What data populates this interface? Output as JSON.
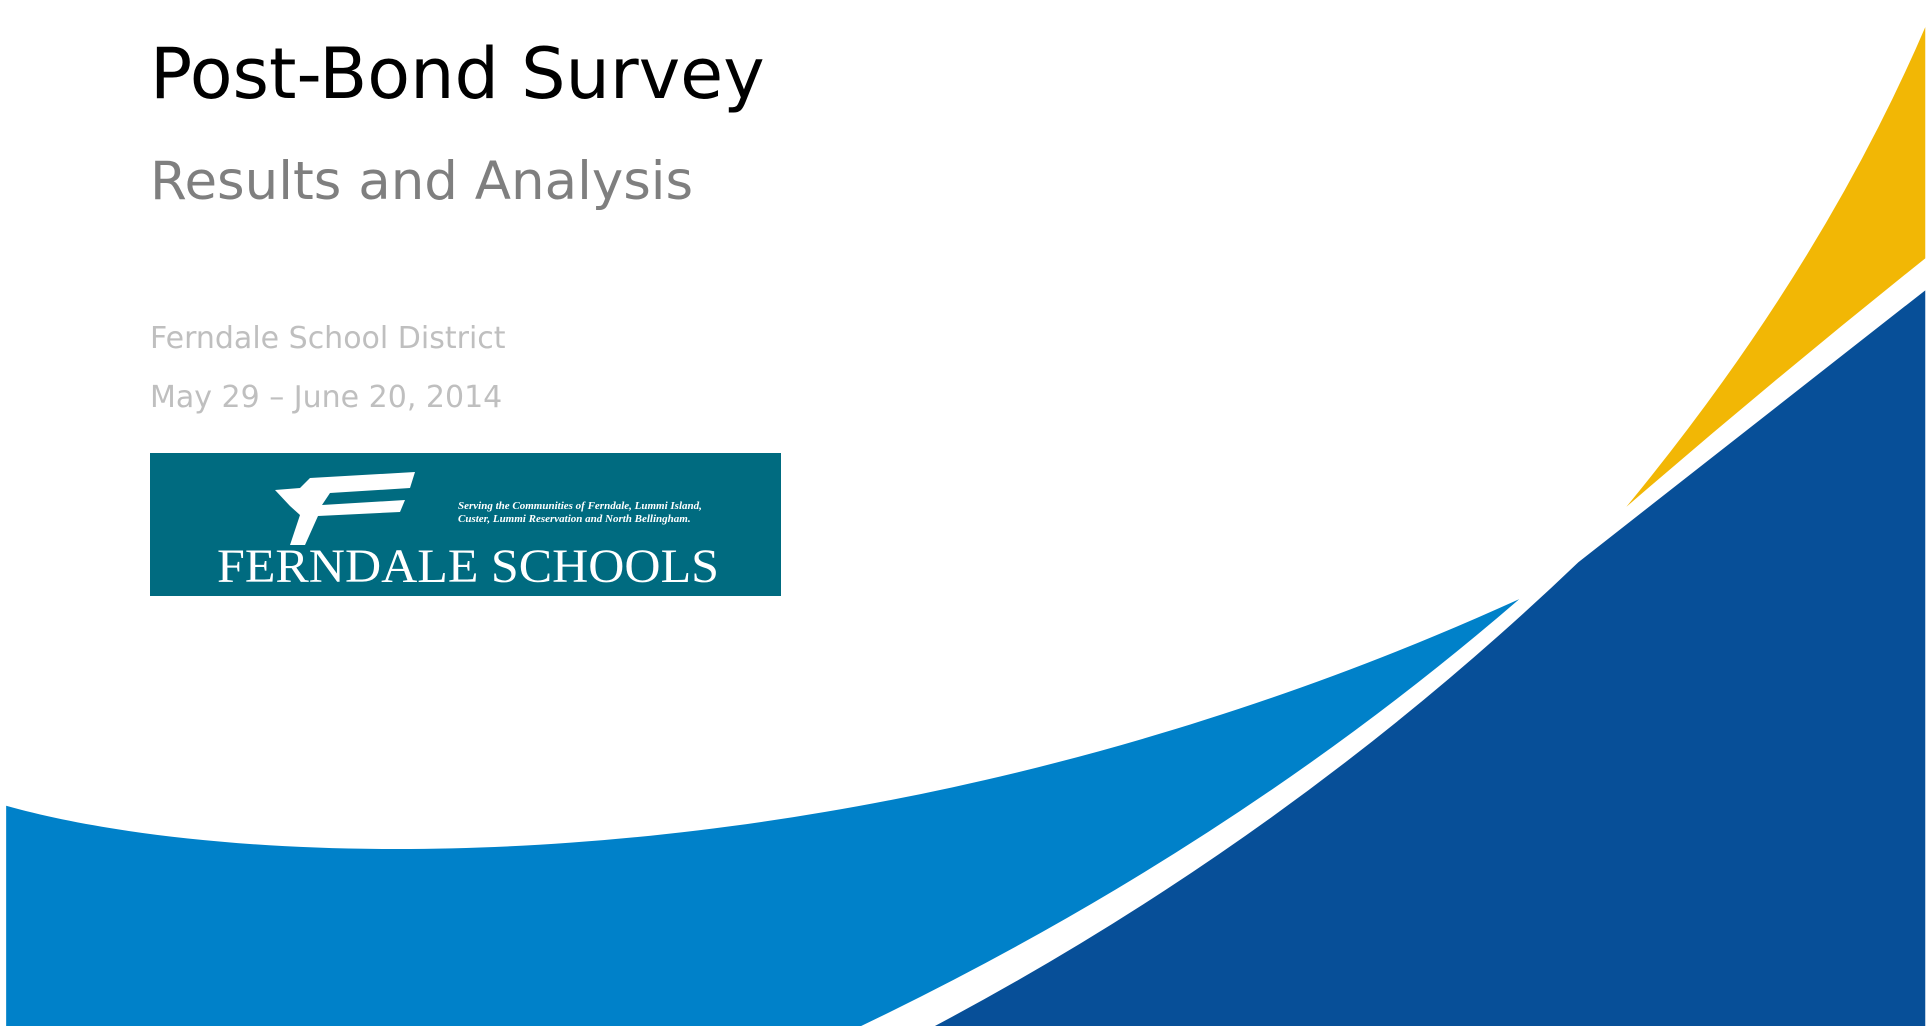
{
  "header": {
    "title": "Post-Bond Survey",
    "subtitle": "Results and Analysis"
  },
  "details": {
    "organization": "Ferndale School District",
    "dates": "May 29 – June 20, 2014"
  },
  "logo": {
    "tagline": [
      "Serving the Communities of Ferndale, Lummi Island,",
      "Custer, Lummi Reservation and North Bellingham."
    ],
    "name": "FERNDALE SCHOOLS"
  }
}
